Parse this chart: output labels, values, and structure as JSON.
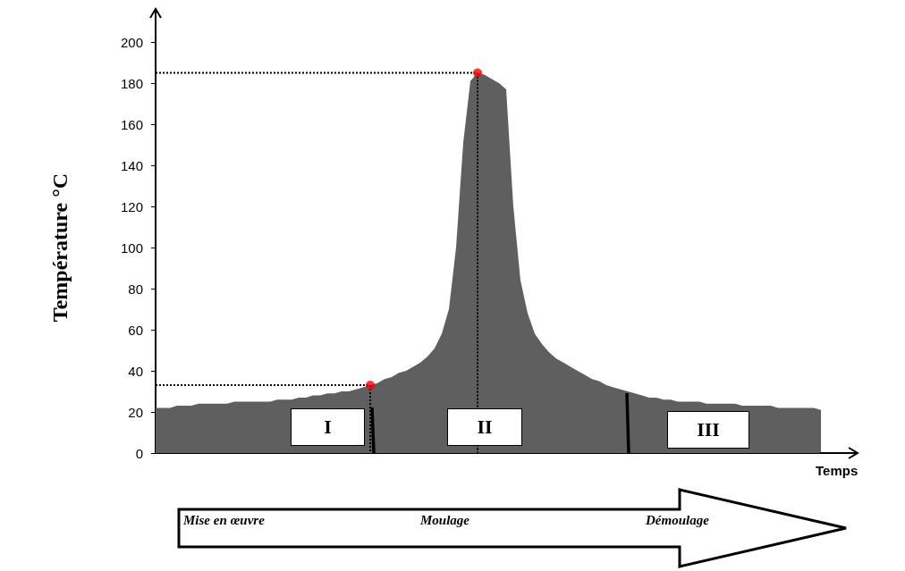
{
  "chart_data": {
    "type": "area",
    "xlabel": "Temps",
    "ylabel": "Température °C",
    "categories": [
      null,
      null,
      null,
      null,
      null,
      null,
      null,
      null,
      null,
      null,
      null,
      null,
      null,
      null,
      null,
      null,
      null,
      null,
      null,
      null,
      null,
      null,
      null,
      null,
      null,
      null,
      null,
      null,
      null,
      null,
      null,
      null,
      null,
      null,
      null,
      null,
      null,
      null,
      null,
      null,
      null,
      null,
      null,
      null,
      null,
      null,
      null,
      null,
      null,
      null,
      null,
      null,
      null,
      null,
      null,
      null,
      null,
      null,
      null,
      null,
      null,
      null,
      null,
      null,
      null,
      null,
      null,
      null,
      null,
      null,
      null,
      null,
      null,
      null,
      null,
      null,
      null,
      null,
      null,
      null,
      null,
      null,
      null,
      null,
      null,
      null,
      null,
      null,
      null,
      null,
      null,
      null,
      null,
      null
    ],
    "series": [
      {
        "color": "#5f5f5f",
        "values": [
          22,
          22,
          22,
          23,
          23,
          23,
          24,
          24,
          24,
          24,
          24,
          25,
          25,
          25,
          25,
          25,
          25,
          26,
          26,
          26,
          27,
          27,
          28,
          28,
          29,
          29,
          30,
          30,
          31,
          32,
          33,
          34,
          36,
          37,
          39,
          40,
          42,
          44,
          47,
          51,
          58,
          70,
          100,
          151,
          181,
          185,
          184,
          182,
          180,
          177,
          120,
          84,
          68,
          58,
          53,
          49,
          46,
          44,
          42,
          40,
          38,
          36,
          35,
          33,
          32,
          31,
          30,
          29,
          28,
          27,
          27,
          26,
          26,
          25,
          25,
          25,
          25,
          24,
          24,
          24,
          24,
          24,
          23,
          23,
          23,
          23,
          23,
          22,
          22,
          22,
          22,
          22,
          22,
          21
        ]
      },
      {
        "type": "line",
        "color": "#000000",
        "line_style": "dotted",
        "values": [
          33,
          33,
          33,
          33,
          33,
          33,
          33,
          33,
          33,
          33,
          33,
          33,
          33,
          33,
          33,
          33,
          33,
          33,
          33,
          33,
          33,
          33,
          33,
          33,
          33,
          33,
          33,
          33,
          33,
          33,
          33,
          null,
          null,
          null,
          null,
          null,
          null,
          null,
          null,
          null,
          null,
          null,
          null,
          null,
          null,
          null,
          null,
          null,
          null,
          null,
          null,
          null,
          null,
          null,
          null,
          null,
          null,
          null,
          null,
          null,
          null,
          null,
          null,
          null,
          null,
          null,
          null,
          null,
          null,
          null,
          null,
          null,
          null,
          null,
          null,
          null,
          null,
          null,
          null,
          null,
          null,
          null,
          null,
          null,
          null,
          null,
          null,
          null,
          null,
          null,
          null,
          null,
          null,
          null
        ]
      },
      {
        "type": "line",
        "color": "#000000",
        "line_style": "dotted",
        "values": [
          185,
          185,
          185,
          185,
          185,
          185,
          185,
          185,
          185,
          185,
          185,
          185,
          185,
          185,
          185,
          185,
          185,
          185,
          185,
          185,
          185,
          185,
          185,
          185,
          185,
          185,
          185,
          185,
          185,
          185,
          185,
          185,
          185,
          185,
          185,
          185,
          185,
          185,
          185,
          185,
          185,
          185,
          185,
          185,
          185,
          185,
          null,
          null,
          null,
          null,
          null,
          null,
          null,
          null,
          null,
          null,
          null,
          null,
          null,
          null,
          null,
          null,
          null,
          null,
          null,
          null,
          null,
          null,
          null,
          null,
          null,
          null,
          null,
          null,
          null,
          null,
          null,
          null,
          null,
          null,
          null,
          null,
          null,
          null,
          null,
          null,
          null,
          null,
          null,
          null,
          null,
          null,
          null,
          null
        ]
      },
      {
        "type": "scatter",
        "color": "#ff0000",
        "marker": "circle",
        "line_style": "dotted",
        "values": [
          null,
          null,
          null,
          null,
          null,
          null,
          null,
          null,
          null,
          null,
          null,
          null,
          null,
          null,
          null,
          null,
          null,
          null,
          null,
          null,
          null,
          null,
          null,
          null,
          null,
          null,
          null,
          null,
          null,
          null,
          33,
          null,
          null,
          null,
          null,
          null,
          null,
          null,
          null,
          null,
          null,
          null,
          null,
          null,
          null,
          185,
          null,
          null,
          null,
          null,
          null,
          null,
          null,
          null,
          null,
          null,
          null,
          null,
          null,
          null,
          null,
          null,
          null,
          null,
          null,
          null,
          null,
          null,
          null,
          null,
          null,
          null,
          null,
          null,
          null,
          null,
          null,
          null,
          null,
          null,
          null,
          null,
          null,
          null,
          null,
          null,
          null,
          null,
          null,
          null,
          null,
          null,
          null,
          null
        ]
      }
    ],
    "ylim": [
      0,
      200
    ],
    "yticks": [
      0,
      20,
      40,
      60,
      80,
      100,
      120,
      140,
      160,
      180,
      200
    ],
    "grid": false,
    "annotations": [
      "I",
      "II",
      "III",
      "Mise en œuvre",
      "Moulage",
      "Démoulage"
    ]
  }
}
